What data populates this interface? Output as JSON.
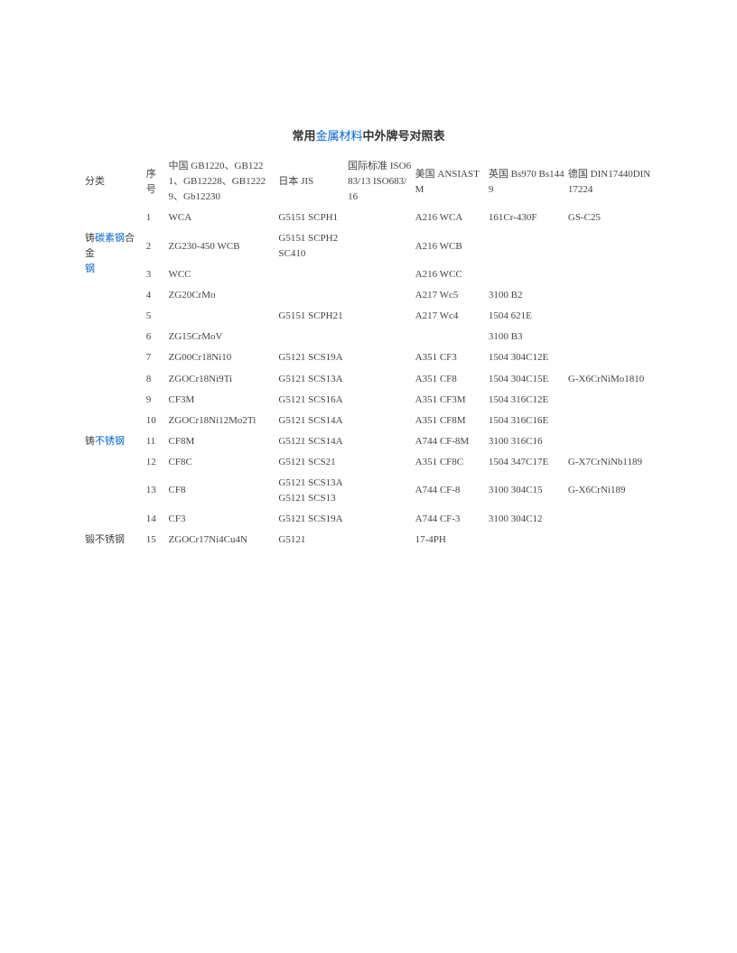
{
  "title_prefix": "常用",
  "title_link": "金属材料",
  "title_suffix": "中外牌号对照表",
  "headers": {
    "cat": "分类",
    "seq": "序号",
    "cn": "中国 GB1220、GB1221、GB12228、GB12229、Gb12230",
    "jp": "日本 JIS",
    "iso": "国际标准 ISO683/13 ISO683/16",
    "us": "美国 ANSIASTM",
    "uk": "英国 Bs970 Bs1449",
    "de": "德国 DIN17440DIN17224"
  },
  "categories": {
    "cat1_pre": "铸",
    "cat1_link": "碳素钢",
    "cat1_mid": "合金",
    "cat1_link2": "钢",
    "cat2_pre": "铸",
    "cat2_link": "不锈钢",
    "cat3": "锻不锈钢"
  },
  "rows": [
    {
      "seq": "1",
      "cn": "WCA",
      "jp": "G5151 SCPH1",
      "iso": "",
      "us": "A216 WCA",
      "uk": "161Cr-430F",
      "de": "GS-C25"
    },
    {
      "seq": "2",
      "cn": "ZG230-450 WCB",
      "jp": "G5151 SCPH2 SC410",
      "iso": "",
      "us": "A216 WCB",
      "uk": "",
      "de": ""
    },
    {
      "seq": "3",
      "cn": "WCC",
      "jp": "",
      "iso": "",
      "us": "A216 WCC",
      "uk": "",
      "de": ""
    },
    {
      "seq": "4",
      "cn": "ZG20CrMo",
      "jp": "",
      "iso": "",
      "us": "A217 Wc5",
      "uk": "3100 B2",
      "de": ""
    },
    {
      "seq": "5",
      "cn": "",
      "jp": "G5151 SCPH21",
      "iso": "",
      "us": "A217 Wc4",
      "uk": "1504 621E",
      "de": ""
    },
    {
      "seq": "6",
      "cn": "ZG15CrMoV",
      "jp": "",
      "iso": "",
      "us": "",
      "uk": "3100 B3",
      "de": ""
    },
    {
      "seq": "7",
      "cn": "ZG00Cr18Ni10",
      "jp": "G5121 SCS19A",
      "iso": "",
      "us": "A351 CF3",
      "uk": "1504 304C12E",
      "de": ""
    },
    {
      "seq": "8",
      "cn": "ZGOCr18Ni9Ti",
      "jp": "G5121 SCS13A",
      "iso": "",
      "us": "A351 CF8",
      "uk": "1504 304C15E",
      "de": "G-X6CrNiMo1810"
    },
    {
      "seq": "9",
      "cn": "CF3M",
      "jp": "G5121 SCS16A",
      "iso": "",
      "us": "A351 CF3M",
      "uk": "1504 316C12E",
      "de": ""
    },
    {
      "seq": "10",
      "cn": "ZGOCr18Ni12Mo2Ti",
      "jp": "G5121 SCS14A",
      "iso": "",
      "us": "A351 CF8M",
      "uk": "1504 316C16E",
      "de": ""
    },
    {
      "seq": "11",
      "cn": "CF8M",
      "jp": "G5121 SCS14A",
      "iso": "",
      "us": "A744 CF-8M",
      "uk": "3100 316C16",
      "de": ""
    },
    {
      "seq": "12",
      "cn": "CF8C",
      "jp": "G5121 SCS21",
      "iso": "",
      "us": "A351 CF8C",
      "uk": "1504 347C17E",
      "de": "G-X7CrNiNb1189"
    },
    {
      "seq": "13",
      "cn": "CF8",
      "jp": "G5121 SCS13A G5121 SCS13",
      "iso": "",
      "us": "A744 CF-8",
      "uk": "3100 304C15",
      "de": "G-X6CrNi189"
    },
    {
      "seq": "14",
      "cn": "CF3",
      "jp": "G5121 SCS19A",
      "iso": "",
      "us": "A744 CF-3",
      "uk": "3100 304C12",
      "de": ""
    },
    {
      "seq": "15",
      "cn": "ZGOCr17Ni4Cu4N",
      "jp": "G5121",
      "iso": "",
      "us": "17-4PH",
      "uk": "",
      "de": ""
    }
  ]
}
